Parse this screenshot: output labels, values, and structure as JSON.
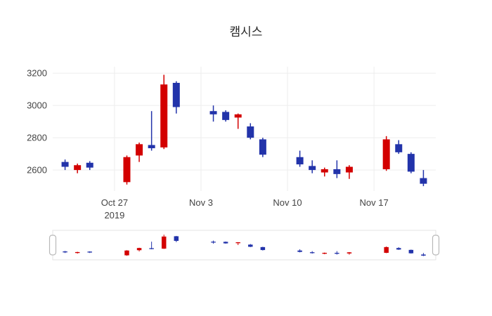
{
  "title": "캠시스",
  "chart": {
    "background": "#ffffff",
    "grid_color": "#ededed",
    "axis_text_color": "#444444",
    "increasing_color": "#d30000",
    "decreasing_color": "#2233aa",
    "rangeslider_border_color": "#e3e3e3",
    "handle_border_color": "#b9b9b9"
  },
  "chart_data": {
    "type": "candlestick",
    "title": "캠시스",
    "x": [
      "2019-10-23",
      "2019-10-24",
      "2019-10-25",
      "2019-10-28",
      "2019-10-29",
      "2019-10-30",
      "2019-10-31",
      "2019-11-01",
      "2019-11-04",
      "2019-11-05",
      "2019-11-06",
      "2019-11-07",
      "2019-11-08",
      "2019-11-11",
      "2019-11-12",
      "2019-11-13",
      "2019-11-14",
      "2019-11-15",
      "2019-11-18",
      "2019-11-19",
      "2019-11-20",
      "2019-11-21"
    ],
    "open": [
      2650,
      2600,
      2645,
      2525,
      2690,
      2755,
      2740,
      3140,
      2965,
      2960,
      2925,
      2870,
      2790,
      2680,
      2625,
      2585,
      2605,
      2585,
      2605,
      2760,
      2700,
      2550
    ],
    "high": [
      2665,
      2640,
      2655,
      2690,
      2770,
      2965,
      3190,
      3150,
      3000,
      2970,
      2950,
      2890,
      2800,
      2720,
      2660,
      2615,
      2660,
      2630,
      2810,
      2785,
      2710,
      2600
    ],
    "low": [
      2600,
      2580,
      2600,
      2510,
      2650,
      2720,
      2730,
      2950,
      2900,
      2900,
      2855,
      2790,
      2680,
      2620,
      2580,
      2560,
      2550,
      2545,
      2595,
      2700,
      2580,
      2500
    ],
    "close": [
      2620,
      2630,
      2615,
      2680,
      2760,
      2735,
      3130,
      2990,
      2945,
      2910,
      2945,
      2800,
      2695,
      2635,
      2600,
      2605,
      2575,
      2620,
      2790,
      2710,
      2590,
      2515
    ],
    "ylim": [
      2470,
      3240
    ],
    "xrange": [
      "2019-10-22",
      "2019-11-22"
    ],
    "yticks": [
      2600,
      2800,
      3000,
      3200
    ],
    "xticks": [
      {
        "date": "2019-10-27",
        "label": "Oct 27",
        "sublabel": "2019"
      },
      {
        "date": "2019-11-03",
        "label": "Nov 3"
      },
      {
        "date": "2019-11-10",
        "label": "Nov 10"
      },
      {
        "date": "2019-11-17",
        "label": "Nov 17"
      }
    ],
    "grid": true,
    "legend": false,
    "rangeslider": true
  }
}
